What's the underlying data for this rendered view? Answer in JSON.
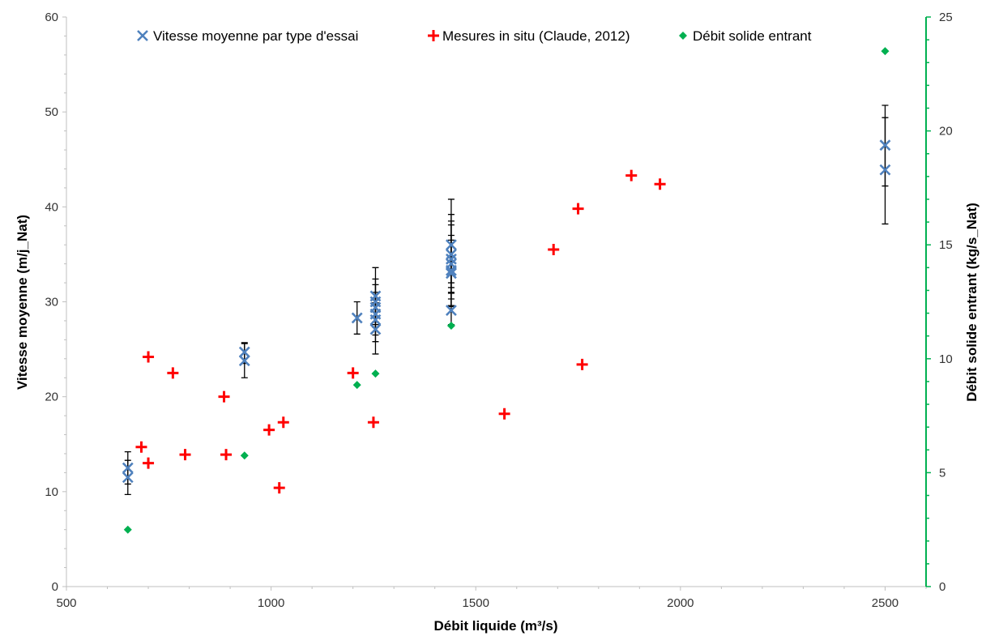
{
  "chart_data": {
    "type": "scatter",
    "xlabel": "Débit liquide (m³/s)",
    "ylabel_left": "Vitesse moyenne (m/j_Nat)",
    "ylabel_right": "Débit solide entrant (kg/s_Nat)",
    "xlim": [
      500,
      2600
    ],
    "ylim_left": [
      0,
      60
    ],
    "ylim_right": [
      0,
      25
    ],
    "x_ticks": [
      500,
      1000,
      1500,
      2000,
      2500
    ],
    "y_ticks_left": [
      0,
      10,
      20,
      30,
      40,
      50,
      60
    ],
    "y_ticks_right": [
      0,
      5,
      10,
      15,
      20,
      25
    ],
    "grid": false,
    "legend_position": "top",
    "colors": {
      "vitesse": "#4f81bd",
      "mesures": "#ff0000",
      "debit_solide": "#00b050",
      "right_axis": "#00b050",
      "error_bar": "#000000",
      "axis": "#bfbfbf"
    },
    "series": [
      {
        "name": "Vitesse moyenne par type d'essai",
        "marker": "x",
        "axis": "left",
        "points": [
          {
            "x": 650,
            "y": 12.5,
            "err_low": 10.8,
            "err_high": 14.2
          },
          {
            "x": 650,
            "y": 11.5,
            "err_low": 9.7,
            "err_high": 13.3
          },
          {
            "x": 935,
            "y": 24.7,
            "err_low": 23.5,
            "err_high": 25.7
          },
          {
            "x": 935,
            "y": 23.8,
            "err_low": 22.0,
            "err_high": 25.6
          },
          {
            "x": 1210,
            "y": 28.3,
            "err_low": 26.6,
            "err_high": 30.0
          },
          {
            "x": 1255,
            "y": 30.6,
            "err_low": 27.6,
            "err_high": 33.6
          },
          {
            "x": 1255,
            "y": 30.0,
            "err_low": 27.9,
            "err_high": 32.4
          },
          {
            "x": 1255,
            "y": 29.4,
            "err_low": 27.3,
            "err_high": 31.8
          },
          {
            "x": 1255,
            "y": 28.7,
            "err_low": 26.5,
            "err_high": 31.0
          },
          {
            "x": 1255,
            "y": 28.1,
            "err_low": 25.8,
            "err_high": 30.4
          },
          {
            "x": 1255,
            "y": 27.1,
            "err_low": 24.5,
            "err_high": 29.9
          },
          {
            "x": 1440,
            "y": 36.0,
            "err_low": 31.5,
            "err_high": 40.8
          },
          {
            "x": 1440,
            "y": 35.0,
            "err_low": 32.0,
            "err_high": 39.2
          },
          {
            "x": 1440,
            "y": 34.5,
            "err_low": 31.0,
            "err_high": 38.5
          },
          {
            "x": 1440,
            "y": 34.0,
            "err_low": 30.3,
            "err_high": 38.1
          },
          {
            "x": 1440,
            "y": 33.3,
            "err_low": 29.6,
            "err_high": 37.0
          },
          {
            "x": 1440,
            "y": 33.0,
            "err_low": 29.5,
            "err_high": 36.5
          },
          {
            "x": 1440,
            "y": 29.1,
            "err_low": 27.6,
            "err_high": 30.9
          },
          {
            "x": 2500,
            "y": 46.5,
            "err_low": 42.2,
            "err_high": 50.7
          },
          {
            "x": 2500,
            "y": 43.9,
            "err_low": 38.2,
            "err_high": 49.4
          }
        ]
      },
      {
        "name": "Mesures in situ (Claude, 2012)",
        "marker": "plus",
        "axis": "left",
        "points": [
          {
            "x": 683,
            "y": 14.7
          },
          {
            "x": 700,
            "y": 24.2
          },
          {
            "x": 700,
            "y": 13.0
          },
          {
            "x": 760,
            "y": 22.5
          },
          {
            "x": 790,
            "y": 13.9
          },
          {
            "x": 885,
            "y": 20.0
          },
          {
            "x": 890,
            "y": 13.9
          },
          {
            "x": 995,
            "y": 16.5
          },
          {
            "x": 1020,
            "y": 10.4
          },
          {
            "x": 1030,
            "y": 17.3
          },
          {
            "x": 1200,
            "y": 22.5
          },
          {
            "x": 1250,
            "y": 17.3
          },
          {
            "x": 1570,
            "y": 18.2
          },
          {
            "x": 1690,
            "y": 35.5
          },
          {
            "x": 1750,
            "y": 39.8
          },
          {
            "x": 1760,
            "y": 23.4
          },
          {
            "x": 1880,
            "y": 43.3
          },
          {
            "x": 1950,
            "y": 42.4
          }
        ]
      },
      {
        "name": "Débit solide entrant",
        "marker": "diamond",
        "axis": "right",
        "points": [
          {
            "x": 650,
            "y": 2.5
          },
          {
            "x": 935,
            "y": 5.75
          },
          {
            "x": 1210,
            "y": 8.85
          },
          {
            "x": 1255,
            "y": 9.35
          },
          {
            "x": 1440,
            "y": 11.45
          },
          {
            "x": 2500,
            "y": 23.5
          }
        ]
      }
    ]
  }
}
